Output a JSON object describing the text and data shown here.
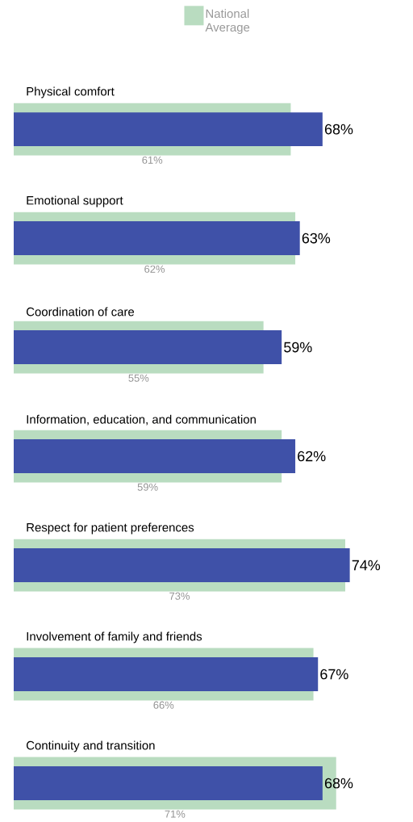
{
  "chart_data": {
    "type": "bar",
    "orientation": "horizontal",
    "legend": "top",
    "categories": [
      "Physical comfort",
      "Emotional support",
      "Coordination of care",
      "Information, education, and communication",
      "Respect for patient preferences",
      "Involvement of family and friends",
      "Continuity and transition"
    ],
    "series": [
      {
        "name": "National Average",
        "color": "#b9dcc0",
        "values": [
          61,
          62,
          55,
          59,
          73,
          66,
          71
        ],
        "value_labels": [
          "61%",
          "62%",
          "55%",
          "59%",
          "73%",
          "66%",
          "71%"
        ]
      },
      {
        "color": "#3f51a8",
        "values": [
          68,
          63,
          59,
          62,
          74,
          67,
          68
        ],
        "value_labels": [
          "68%",
          "63%",
          "59%",
          "62%",
          "74%",
          "67%",
          "68%"
        ]
      }
    ]
  }
}
